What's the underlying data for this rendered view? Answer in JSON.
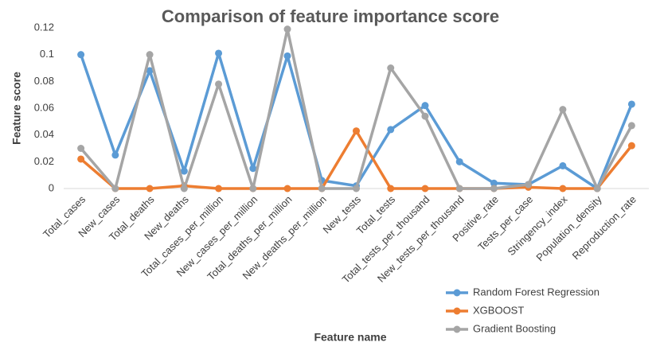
{
  "chart_data": {
    "type": "line",
    "title": "Comparison of feature importance score",
    "x_label": "Feature name",
    "y_label": "Feature score",
    "categories": [
      "Total_cases",
      "New_cases",
      "Total_deaths",
      "New_deaths",
      "Total_cases_per_million",
      "New_cases_per_million",
      "Total_deaths_per_million",
      "New_deaths_per_million",
      "New_tests",
      "Total_tests",
      "Total_tests_per_thousand",
      "New_tests_per_thousand",
      "Positive_rate",
      "Tests_per_case",
      "Stringency_index",
      "Population_density",
      "Reproduction_rate"
    ],
    "series": [
      {
        "name": "Random Forest Regression",
        "color": "#5b9bd5",
        "values": [
          0.1,
          0.025,
          0.088,
          0.013,
          0.101,
          0.015,
          0.099,
          0.006,
          0.002,
          0.044,
          0.062,
          0.02,
          0.004,
          0.003,
          0.017,
          0,
          0.063
        ]
      },
      {
        "name": "XGBOOST",
        "color": "#ed7d31",
        "values": [
          0.022,
          0,
          0,
          0.002,
          0,
          0,
          0,
          0,
          0.043,
          0,
          0,
          0,
          0,
          0.001,
          0,
          0,
          0.032
        ]
      },
      {
        "name": "Gradient Boosting",
        "color": "#a5a5a5",
        "values": [
          0.03,
          0,
          0.1,
          0,
          0.078,
          0,
          0.119,
          0,
          0,
          0.09,
          0.054,
          0,
          0,
          0.003,
          0.059,
          0,
          0.047
        ]
      }
    ],
    "ylim": [
      0,
      0.12
    ],
    "yticks": [
      0,
      0.02,
      0.04,
      0.06,
      0.08,
      0.1,
      0.12
    ],
    "grid": false,
    "legend": "bottom-right"
  }
}
